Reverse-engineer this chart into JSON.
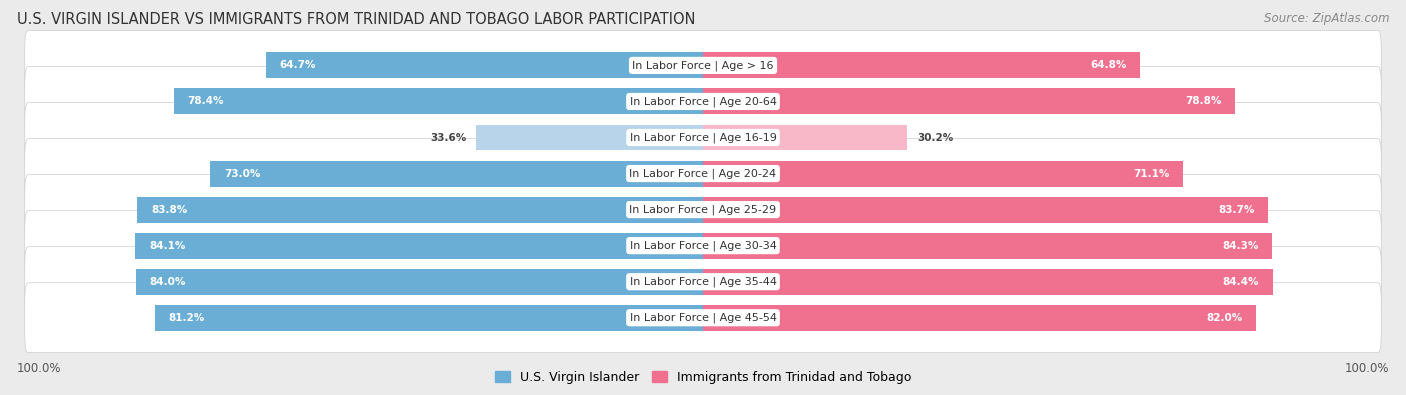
{
  "title": "U.S. VIRGIN ISLANDER VS IMMIGRANTS FROM TRINIDAD AND TOBAGO LABOR PARTICIPATION",
  "source": "Source: ZipAtlas.com",
  "categories": [
    "In Labor Force | Age > 16",
    "In Labor Force | Age 20-64",
    "In Labor Force | Age 16-19",
    "In Labor Force | Age 20-24",
    "In Labor Force | Age 25-29",
    "In Labor Force | Age 30-34",
    "In Labor Force | Age 35-44",
    "In Labor Force | Age 45-54"
  ],
  "virgin_islander_values": [
    64.7,
    78.4,
    33.6,
    73.0,
    83.8,
    84.1,
    84.0,
    81.2
  ],
  "trinidad_values": [
    64.8,
    78.8,
    30.2,
    71.1,
    83.7,
    84.3,
    84.4,
    82.0
  ],
  "virgin_islander_color": "#6aaed6",
  "virgin_islander_color_light": "#b8d4ea",
  "trinidad_color": "#f07090",
  "trinidad_color_light": "#f9b8c8",
  "background_color": "#ebebeb",
  "row_bg_even": "#f5f5f5",
  "row_bg_odd": "#ffffff",
  "legend_label_vi": "U.S. Virgin Islander",
  "legend_label_tt": "Immigrants from Trinidad and Tobago",
  "title_fontsize": 10.5,
  "source_fontsize": 8.5,
  "label_fontsize": 8,
  "value_fontsize": 7.5,
  "axis_label_left": "100.0%",
  "axis_label_right": "100.0%"
}
